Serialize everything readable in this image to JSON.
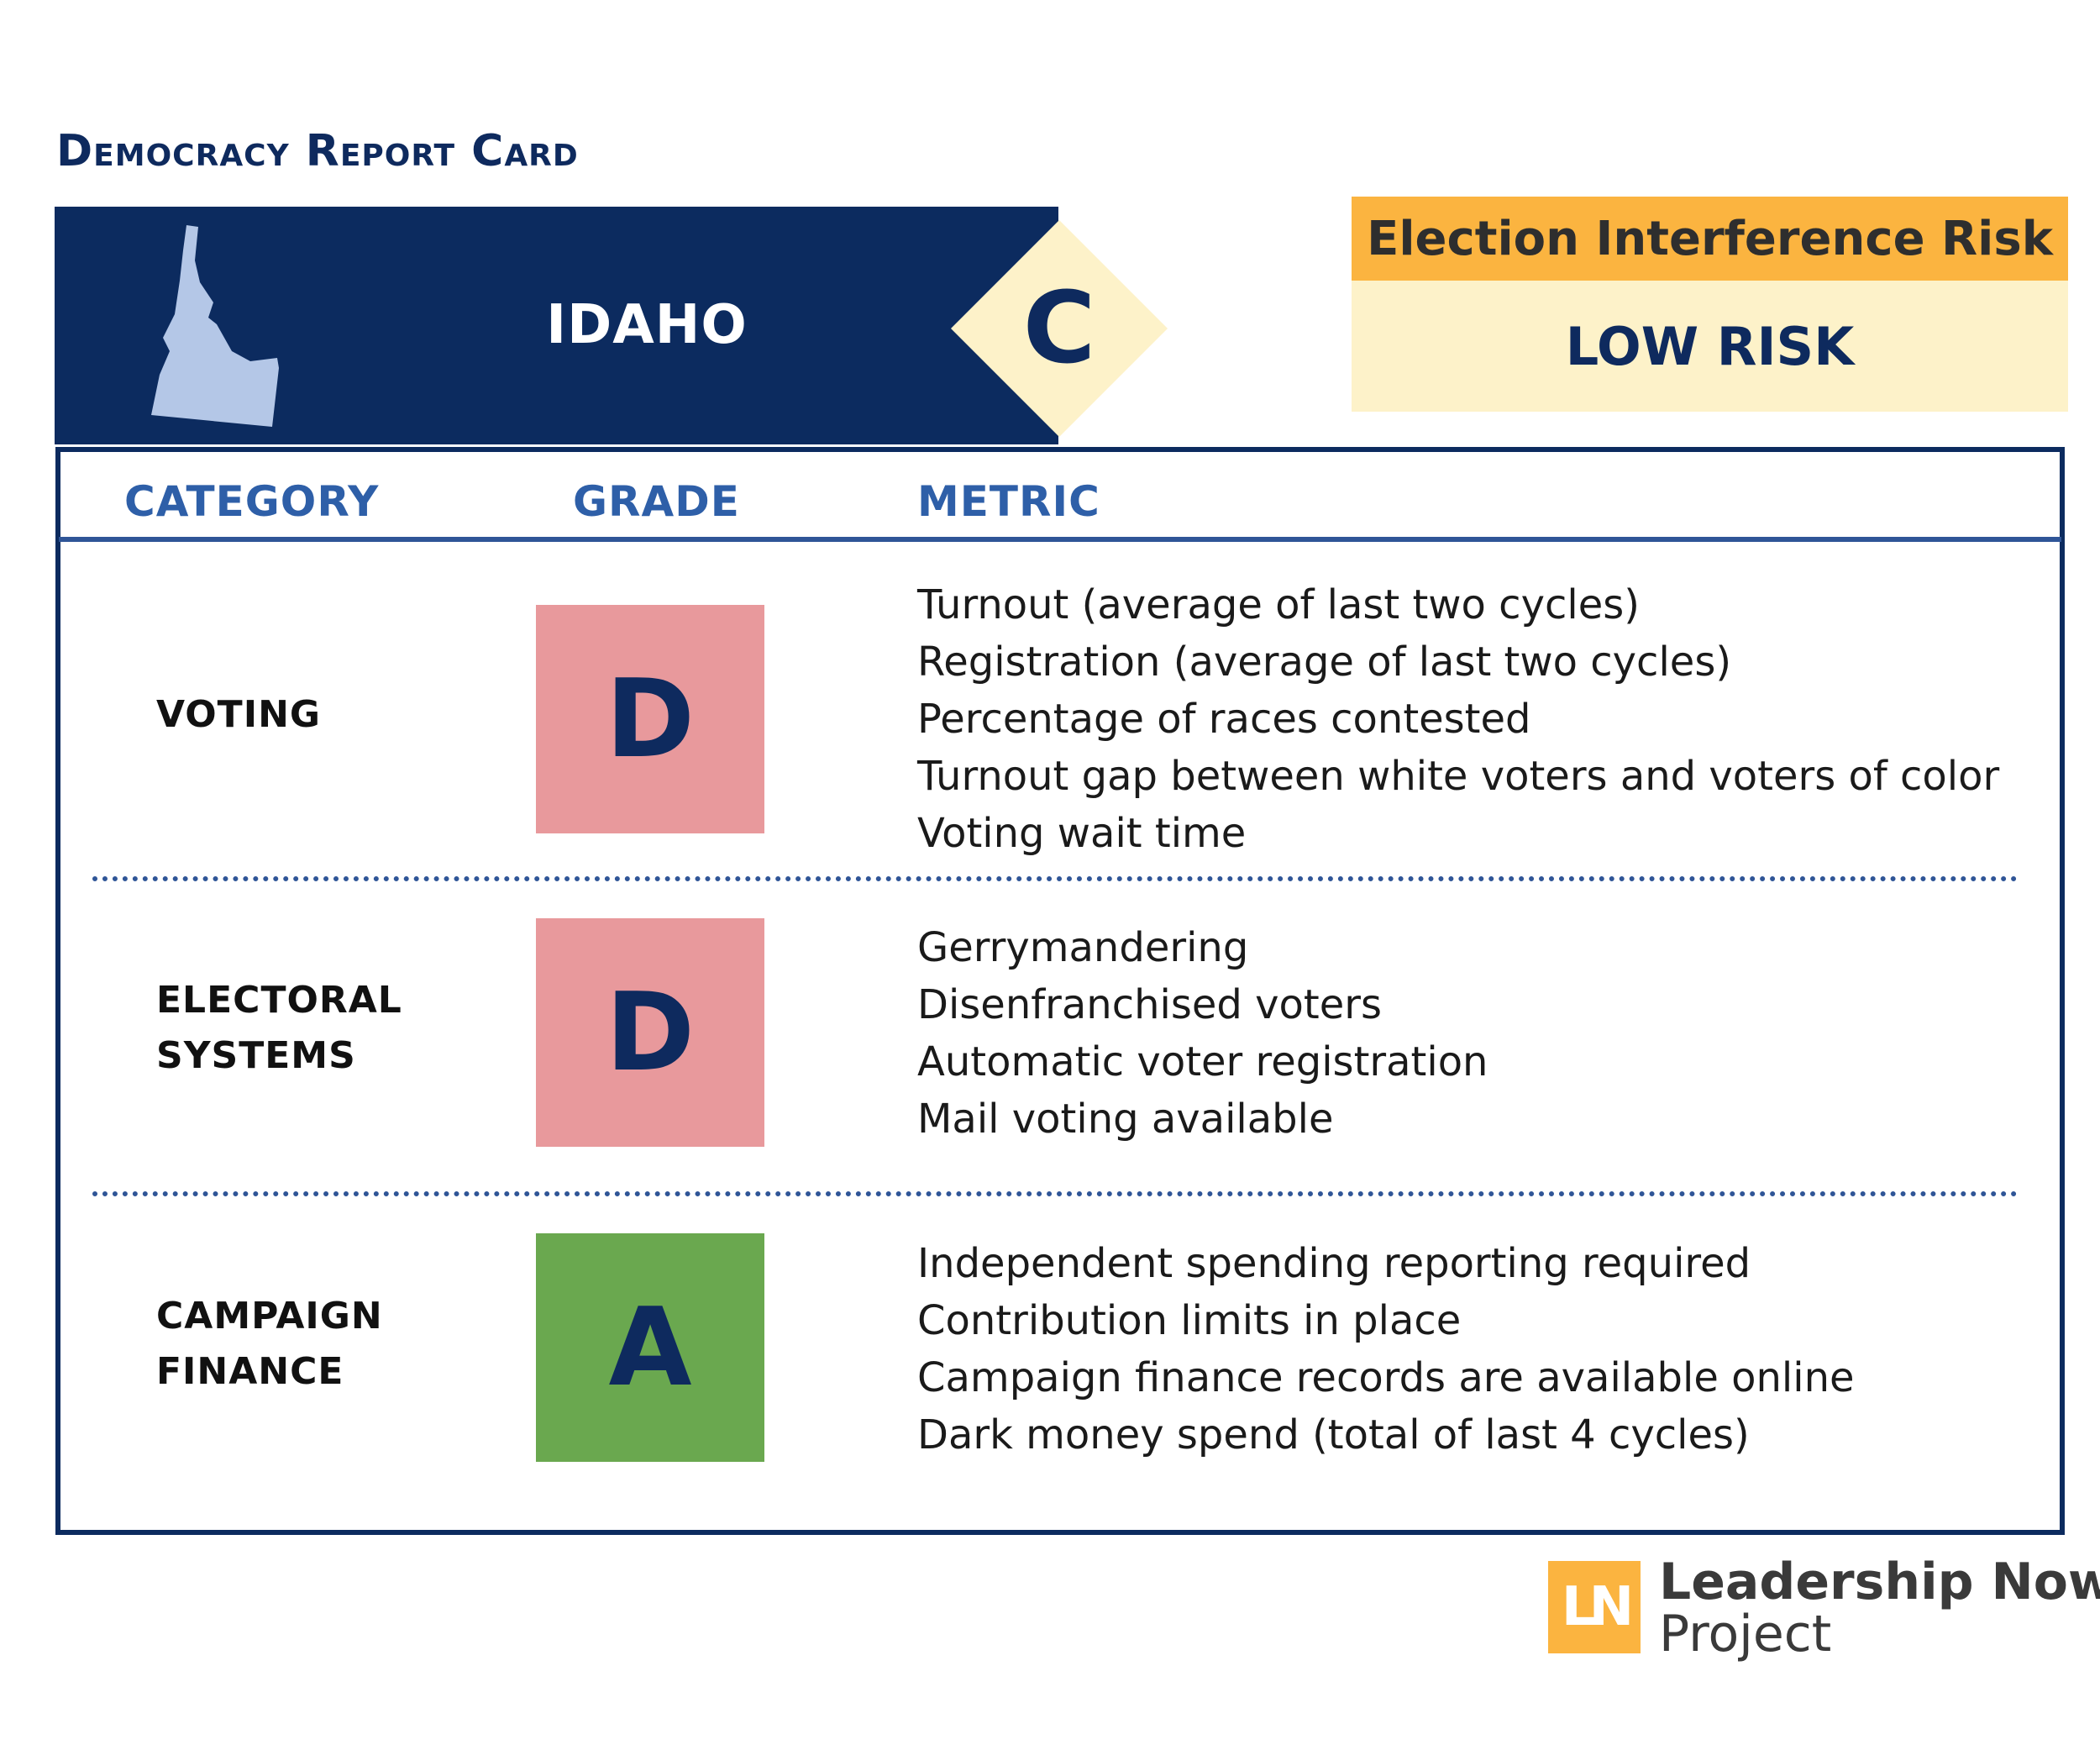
{
  "header": {
    "title": "Democracy Report Card",
    "state": "IDAHO",
    "overall_grade": "C"
  },
  "risk": {
    "label": "Election Interference Risk",
    "level": "LOW RISK"
  },
  "table": {
    "headers": {
      "category": "CATEGORY",
      "grade": "GRADE",
      "metric": "METRIC"
    },
    "rows": [
      {
        "category_lines": [
          "VOTING"
        ],
        "grade": "D",
        "grade_color": "#e8999c",
        "metrics": [
          "Turnout (average of last two cycles)",
          "Registration (average of last two cycles)",
          "Percentage of races contested",
          "Turnout gap between white voters and voters of color",
          "Voting wait time"
        ]
      },
      {
        "category_lines": [
          "ELECTORAL",
          "SYSTEMS"
        ],
        "grade": "D",
        "grade_color": "#e8999c",
        "metrics": [
          "Gerrymandering",
          "Disenfranchised voters",
          "Automatic voter registration",
          "Mail voting available"
        ]
      },
      {
        "category_lines": [
          "CAMPAIGN",
          "FINANCE"
        ],
        "grade": "A",
        "grade_color": "#6aa84f",
        "metrics": [
          "Independent spending reporting required",
          "Contribution limits in place",
          "Campaign finance records are available online",
          "Dark money spend (total of last 4 cycles)"
        ]
      }
    ]
  },
  "logo": {
    "mark": "LN",
    "line1": "Leadership Now",
    "line2": "Project"
  },
  "colors": {
    "navy": "#0c2b5f",
    "accent_blue": "#2e5fa8",
    "gold": "#fbb440",
    "cream": "#fdf2c9"
  }
}
